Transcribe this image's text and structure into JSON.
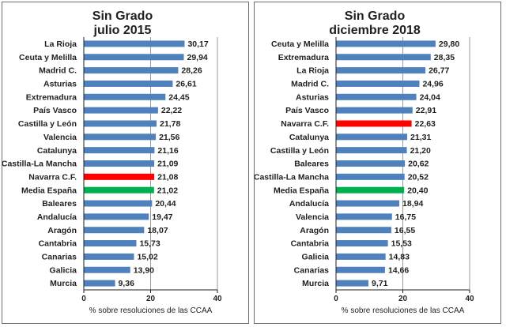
{
  "colors": {
    "bar": "#4f81bd",
    "navarra": "#ff0000",
    "media": "#00b050",
    "grid": "#9a9a9a",
    "axis": "#1f1f1f"
  },
  "chart_data": [
    {
      "type": "bar",
      "orientation": "horizontal",
      "title": [
        "Sin Grado",
        "julio  2015"
      ],
      "xlabel": "% sobre resoluciones  de las CCAA",
      "xlim": [
        0,
        40
      ],
      "xticks": [
        0,
        20,
        40
      ],
      "grid": true,
      "categories": [
        "La Rioja",
        "Ceuta y Melilla",
        "Madrid  C.",
        "Asturias",
        "Extremadura",
        "País Vasco",
        "Castilla y León",
        "Valencia",
        "Catalunya",
        "Castilla-La Mancha",
        "Navarra C.F.",
        "Media España",
        "Baleares",
        "Andalucía",
        "Aragón",
        "Cantabria",
        "Canarias",
        "Galicia",
        "Murcia"
      ],
      "values": [
        30.17,
        29.94,
        28.26,
        26.61,
        24.45,
        22.22,
        21.78,
        21.56,
        21.16,
        21.09,
        21.08,
        21.02,
        20.44,
        19.47,
        18.07,
        15.73,
        15.02,
        13.9,
        9.36
      ],
      "value_labels": [
        "30,17",
        "29,94",
        "28,26",
        "26,61",
        "24,45",
        "22,22",
        "21,78",
        "21,56",
        "21,16",
        "21,09",
        "21,08",
        "21,02",
        "20,44",
        "19,47",
        "18,07",
        "15,73",
        "15,02",
        "13,90",
        "9,36"
      ],
      "highlight": {
        "Navarra C.F.": "navarra",
        "Media España": "media"
      }
    },
    {
      "type": "bar",
      "orientation": "horizontal",
      "title": [
        "Sin Grado",
        "diciembre  2018"
      ],
      "xlabel": "% sobre resoluciones  de las CCAA",
      "xlim": [
        0,
        40
      ],
      "xticks": [
        0,
        20,
        40
      ],
      "grid": true,
      "categories": [
        "Ceuta y Melilla",
        "Extremadura",
        "La Rioja",
        "Madrid  C.",
        "Asturias",
        "País Vasco",
        "Navarra C.F.",
        "Catalunya",
        "Castilla y León",
        "Baleares",
        "Castilla-La Mancha",
        "Media España",
        "Andalucía",
        "Valencia",
        "Aragón",
        "Cantabria",
        "Galicia",
        "Canarias",
        "Murcia"
      ],
      "values": [
        29.8,
        28.35,
        26.77,
        24.96,
        24.04,
        22.91,
        22.63,
        21.31,
        21.2,
        20.62,
        20.52,
        20.4,
        18.94,
        16.75,
        16.55,
        15.53,
        14.83,
        14.66,
        9.71
      ],
      "value_labels": [
        "29,80",
        "28,35",
        "26,77",
        "24,96",
        "24,04",
        "22,91",
        "22,63",
        "21,31",
        "21,20",
        "20,62",
        "20,52",
        "20,40",
        "18,94",
        "16,75",
        "16,55",
        "15,53",
        "14,83",
        "14,66",
        "9,71"
      ],
      "highlight": {
        "Navarra C.F.": "navarra",
        "Media España": "media"
      }
    }
  ]
}
